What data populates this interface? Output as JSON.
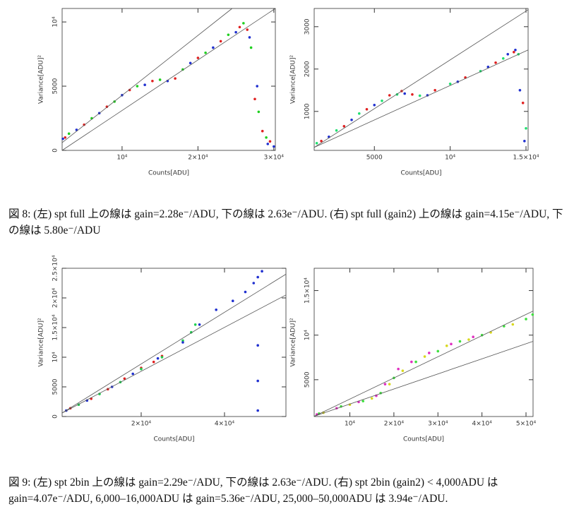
{
  "chart_data": [
    {
      "type": "scatter",
      "xlabel": "Counts[ADU]",
      "ylabel": "Variance[ADU]²",
      "xlim": [
        2100,
        30200
      ],
      "ylim": [
        0,
        11050
      ],
      "xticks": [
        {
          "value": 10000,
          "label": "10⁴"
        },
        {
          "value": 20000,
          "label": "2×10⁴"
        },
        {
          "value": 30000,
          "label": "3×10⁴"
        }
      ],
      "yticks": [
        0,
        5000,
        {
          "value": 10000,
          "label": "10⁴"
        }
      ],
      "series": [
        {
          "color": "#e02020",
          "x": [
            2500,
            5000,
            8000,
            11000,
            14000,
            17000,
            20000,
            23000,
            25500,
            26500,
            27500,
            28500,
            29500
          ],
          "values": [
            1000,
            2000,
            3400,
            4700,
            5400,
            5600,
            7200,
            8500,
            9600,
            9400,
            4000,
            1500,
            700
          ]
        },
        {
          "color": "#20d020",
          "x": [
            3000,
            6000,
            9000,
            12000,
            15000,
            18000,
            21000,
            24000,
            26000,
            27000,
            28000,
            29000
          ],
          "values": [
            1300,
            2500,
            3800,
            5000,
            5500,
            6300,
            7600,
            9000,
            9900,
            8000,
            3000,
            1000
          ]
        },
        {
          "color": "#2030d0",
          "x": [
            2200,
            4000,
            7000,
            10000,
            13000,
            16000,
            19000,
            22000,
            25000,
            26800,
            27800,
            29200,
            30000
          ],
          "values": [
            900,
            1600,
            2900,
            4300,
            5100,
            5400,
            6800,
            8000,
            9200,
            8800,
            5000,
            500,
            300
          ]
        },
        {
          "color": "#555555",
          "mode": "line",
          "x": [
            2100,
            24500
          ],
          "values": [
            600,
            11050
          ]
        },
        {
          "color": "#555555",
          "mode": "line",
          "x": [
            2100,
            30200
          ],
          "values": [
            0,
            11050
          ]
        }
      ]
    },
    {
      "type": "scatter",
      "xlabel": "Counts[ADU]",
      "ylabel": "Variance[ADU]²",
      "xlim": [
        1030,
        15140
      ],
      "ylim": [
        80,
        3430
      ],
      "xticks": [
        5000,
        {
          "value": 10000,
          "label": "10⁴"
        },
        {
          "value": 15000,
          "label": "1.5×10⁴"
        }
      ],
      "yticks": [
        1000,
        2000,
        3000
      ],
      "series": [
        {
          "color": "#e02020",
          "x": [
            1500,
            3000,
            4500,
            6000,
            6800,
            7500,
            9000,
            11000,
            13000,
            14200,
            14800
          ],
          "values": [
            300,
            650,
            1050,
            1380,
            1480,
            1400,
            1500,
            1800,
            2150,
            2400,
            1200
          ]
        },
        {
          "color": "#20e070",
          "x": [
            1200,
            2500,
            4000,
            5500,
            6500,
            8000,
            10000,
            12000,
            13500,
            14500,
            15000
          ],
          "values": [
            250,
            550,
            950,
            1250,
            1400,
            1370,
            1650,
            1950,
            2250,
            2350,
            600
          ]
        },
        {
          "color": "#2030d0",
          "x": [
            2000,
            3500,
            5000,
            7000,
            8500,
            10500,
            12500,
            13800,
            14300,
            14600,
            14900
          ],
          "values": [
            400,
            800,
            1150,
            1420,
            1380,
            1700,
            2050,
            2350,
            2450,
            1500,
            300
          ]
        },
        {
          "color": "#555555",
          "mode": "line",
          "x": [
            1030,
            15140
          ],
          "values": [
            150,
            3400
          ]
        },
        {
          "color": "#555555",
          "mode": "line",
          "x": [
            1030,
            15140
          ],
          "values": [
            150,
            2450
          ]
        }
      ]
    },
    {
      "type": "scatter",
      "xlabel": "Counts[ADU]",
      "ylabel": "Variance[ADU]²",
      "xlim": [
        1020,
        54750
      ],
      "ylim": [
        0,
        25000
      ],
      "xticks": [
        {
          "value": 20000,
          "label": "2×10⁴"
        },
        {
          "value": 40000,
          "label": "4×10⁴"
        }
      ],
      "yticks": [
        0,
        5000,
        {
          "value": 10000,
          "label": "10⁴"
        },
        {
          "value": 15000,
          "label": "1.5×10⁴"
        },
        {
          "value": 20000,
          "label": "2×10⁴"
        },
        {
          "value": 25000,
          "label": "2.5×10⁴"
        }
      ],
      "series": [
        {
          "color": "#e02020",
          "x": [
            3000,
            8000,
            12000,
            16000,
            20000,
            23000,
            25000
          ],
          "values": [
            1400,
            3000,
            4600,
            6400,
            8200,
            9200,
            10200
          ]
        },
        {
          "color": "#20d050",
          "x": [
            5000,
            10000,
            15000,
            20000,
            25000,
            30000,
            32000,
            33000
          ],
          "values": [
            2000,
            3800,
            5800,
            8000,
            10000,
            12800,
            14200,
            15500
          ]
        },
        {
          "color": "#2030d0",
          "x": [
            2000,
            7000,
            13000,
            18000,
            24000,
            30000,
            34000,
            38000,
            42000,
            45000,
            47000,
            48000,
            48000,
            48000,
            48000,
            49000
          ],
          "values": [
            1000,
            2700,
            5000,
            7200,
            9800,
            12500,
            15500,
            18000,
            19500,
            21000,
            22500,
            23500,
            12000,
            6000,
            1000,
            24500
          ]
        },
        {
          "color": "#555555",
          "mode": "line",
          "x": [
            1020,
            54750
          ],
          "values": [
            600,
            24000
          ]
        },
        {
          "color": "#555555",
          "mode": "line",
          "x": [
            1020,
            54750
          ],
          "values": [
            600,
            20500
          ]
        }
      ]
    },
    {
      "type": "scatter",
      "xlabel": "Counts[ADU]",
      "ylabel": "Variance[ADU]²",
      "xlim": [
        1900,
        51600
      ],
      "ylim": [
        870,
        17500
      ],
      "xticks": [
        {
          "value": 10000,
          "label": "10⁴"
        },
        {
          "value": 20000,
          "label": "2×10⁴"
        },
        {
          "value": 30000,
          "label": "3×10⁴"
        },
        {
          "value": 40000,
          "label": "4×10⁴"
        },
        {
          "value": 50000,
          "label": "5×10⁴"
        }
      ],
      "yticks": [
        5000,
        {
          "value": 10000,
          "label": "10⁴"
        },
        {
          "value": 15000,
          "label": "1.5×10⁴"
        }
      ],
      "series": [
        {
          "color": "#40e040",
          "x": [
            3000,
            8000,
            13000,
            17000,
            20000,
            25000,
            30000,
            35000,
            40000,
            45000,
            50000,
            51500
          ],
          "values": [
            1200,
            2000,
            2600,
            3500,
            5200,
            7000,
            8200,
            9300,
            10000,
            11000,
            11800,
            12300
          ]
        },
        {
          "color": "#d8d820",
          "x": [
            4000,
            10000,
            15000,
            19000,
            22000,
            27000,
            32000,
            37000,
            42000,
            47000
          ],
          "values": [
            1300,
            2200,
            2900,
            4500,
            6000,
            7600,
            8800,
            9500,
            10300,
            11200
          ]
        },
        {
          "color": "#e030c0",
          "x": [
            2500,
            7000,
            12000,
            16000,
            18000,
            21000,
            24000,
            28000,
            33000,
            38000
          ],
          "values": [
            1100,
            1800,
            2500,
            3200,
            4500,
            6200,
            7000,
            8000,
            9000,
            9800
          ]
        },
        {
          "color": "#555555",
          "mode": "line",
          "x": [
            1900,
            51600
          ],
          "values": [
            900,
            12700
          ]
        },
        {
          "color": "#555555",
          "mode": "line",
          "x": [
            1900,
            51600
          ],
          "values": [
            900,
            9300
          ]
        }
      ]
    }
  ],
  "captions": [
    "図 8: (左) spt full 上の線は gain=2.28e⁻/ADU, 下の線は 2.63e⁻/ADU. (右) spt full (gain2) 上の線は gain=4.15e⁻/ADU, 下の線は 5.80e⁻/ADU",
    "図 9: (左) spt 2bin 上の線は gain=2.29e⁻/ADU, 下の線は 2.63e⁻/ADU. (右) spt 2bin (gain2) < 4,000ADU は gain=4.07e⁻/ADU, 6,000–16,000ADU は gain=5.36e⁻/ADU, 25,000–50,000ADU は 3.94e⁻/ADU."
  ]
}
